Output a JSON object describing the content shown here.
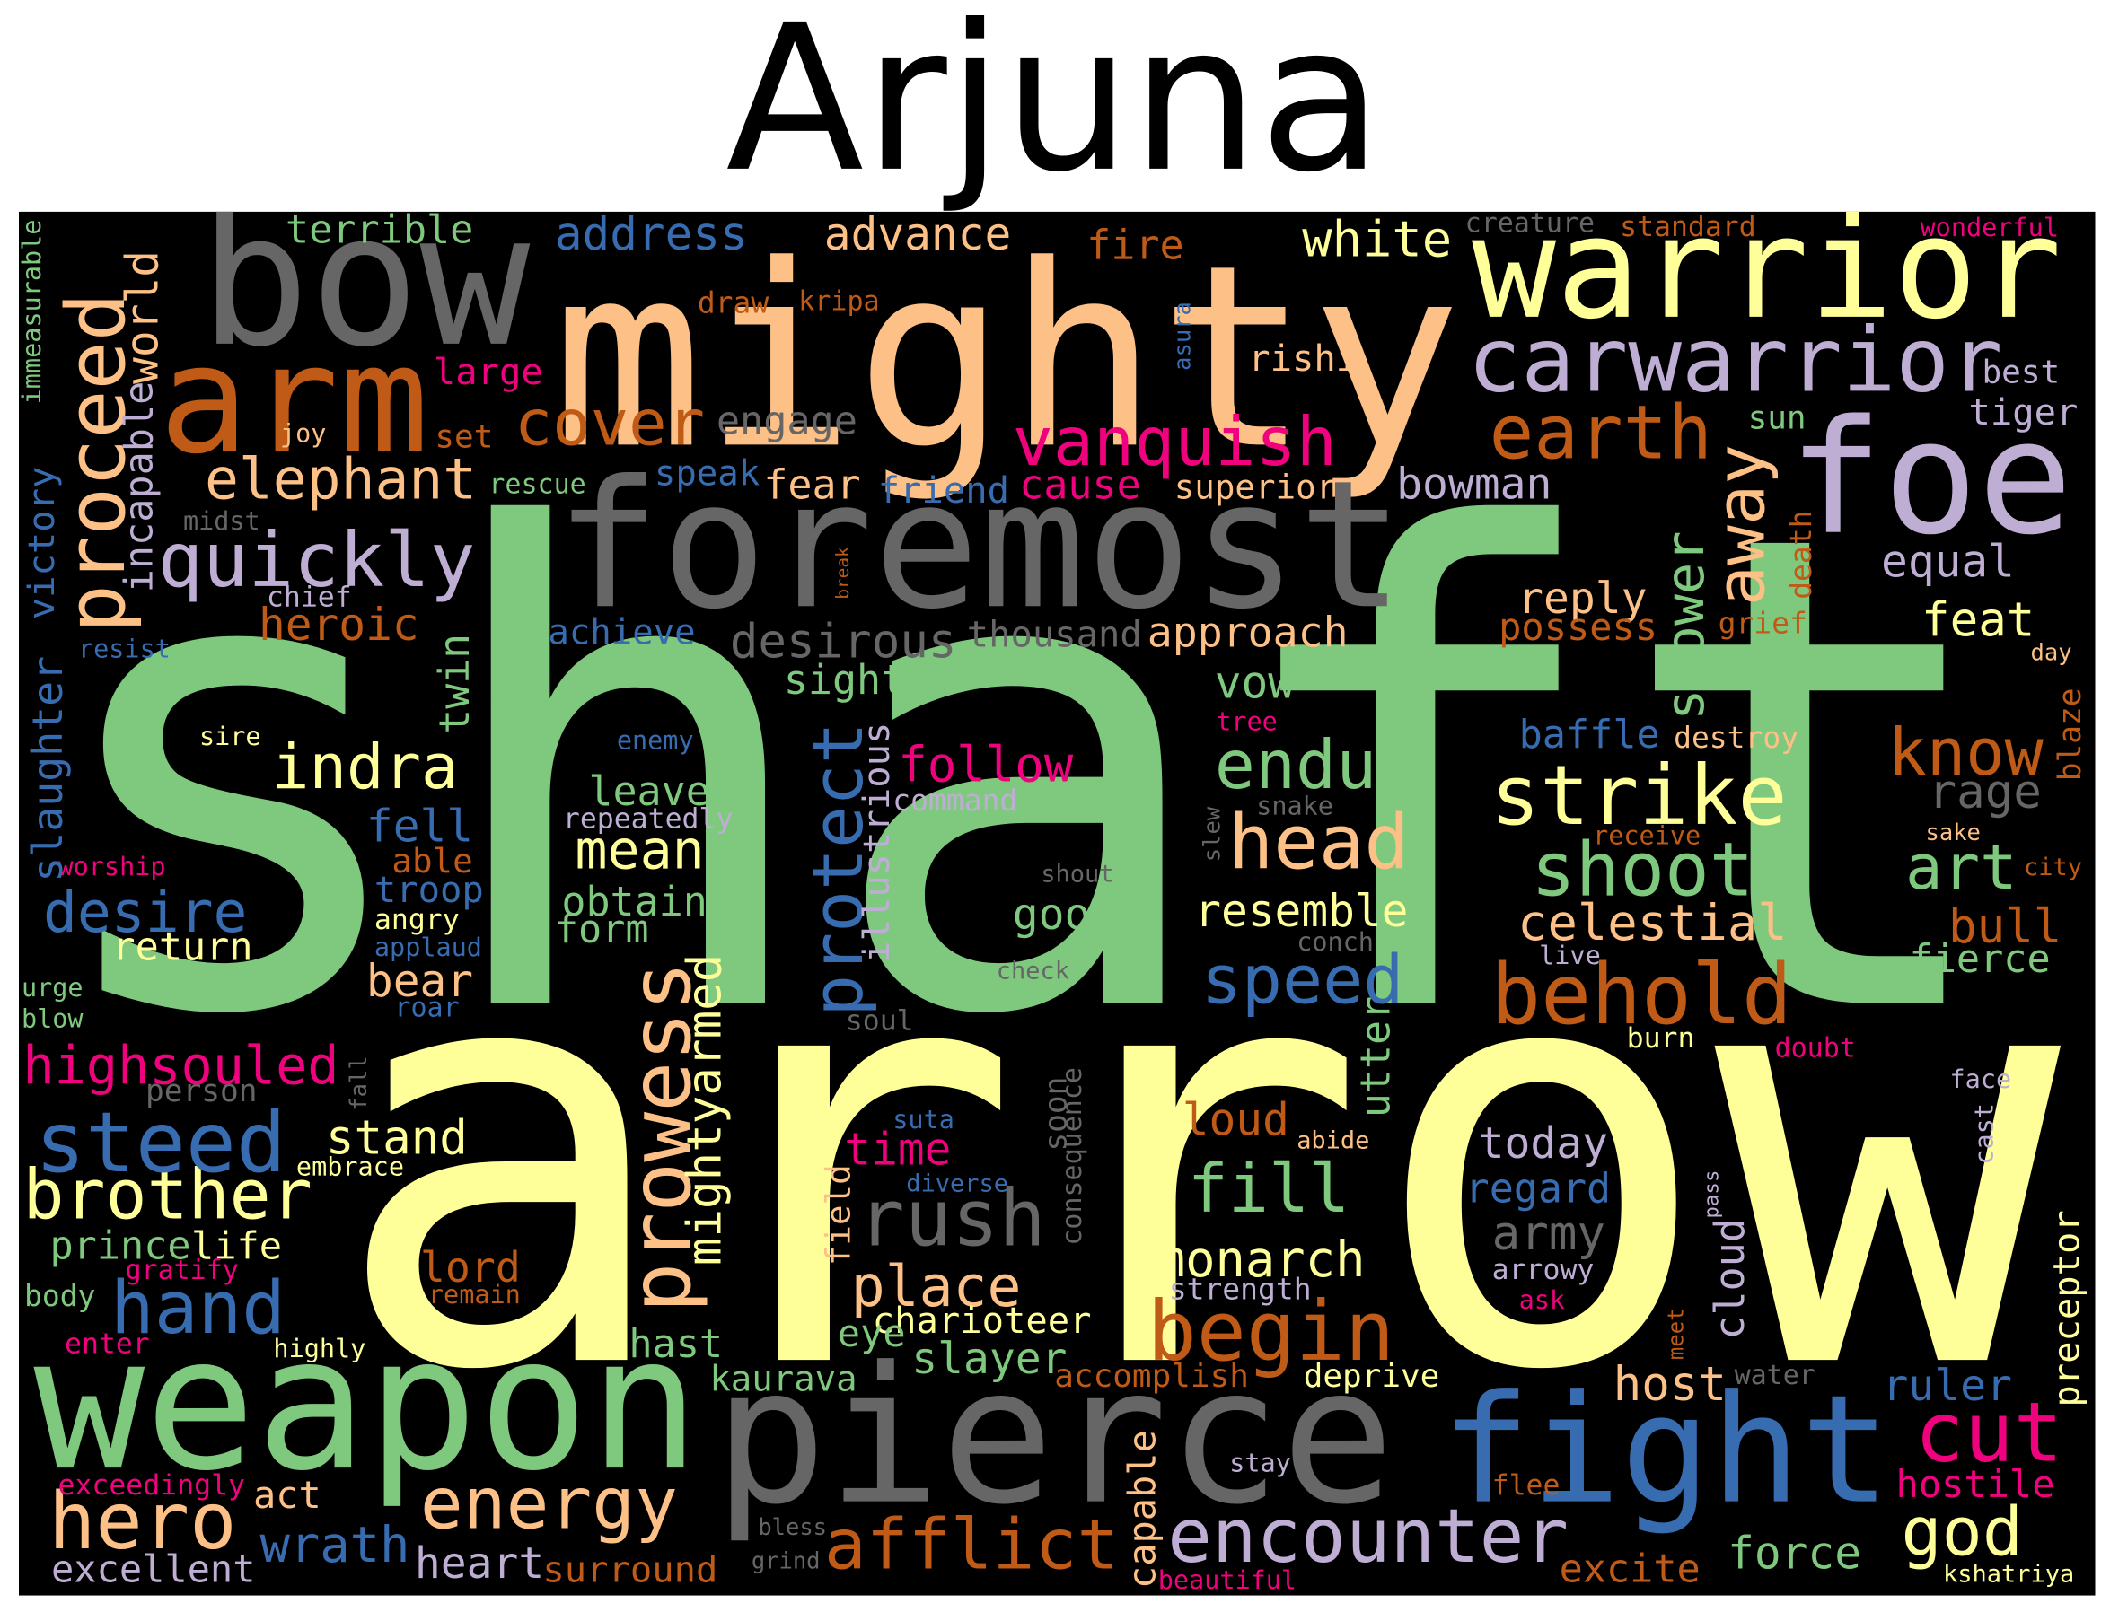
{
  "title": "Arjuna",
  "words": [
    {
      "text": "shaft",
      "color": "#7fc97f"
    },
    {
      "text": "arrow",
      "color": "#ffff99"
    },
    {
      "text": "mighty",
      "color": "#fdc086"
    },
    {
      "text": "foremost",
      "color": "#666666"
    },
    {
      "text": "bow",
      "color": "#666666"
    },
    {
      "text": "arm",
      "color": "#bf5b17"
    },
    {
      "text": "warrior",
      "color": "#ffff99"
    },
    {
      "text": "carwarrior",
      "color": "#beaed4"
    },
    {
      "text": "foe",
      "color": "#beaed4"
    },
    {
      "text": "earth",
      "color": "#bf5b17"
    },
    {
      "text": "weapon",
      "color": "#7fc97f"
    },
    {
      "text": "pierce",
      "color": "#666666"
    },
    {
      "text": "fight",
      "color": "#386cb0"
    },
    {
      "text": "cut",
      "color": "#f0027f"
    },
    {
      "text": "hero",
      "color": "#fdc086"
    },
    {
      "text": "energy",
      "color": "#fdc086"
    },
    {
      "text": "afflict",
      "color": "#bf5b17"
    },
    {
      "text": "encounter",
      "color": "#beaed4"
    },
    {
      "text": "god",
      "color": "#ffff99"
    },
    {
      "text": "force",
      "color": "#7fc97f"
    },
    {
      "text": "excite",
      "color": "#bf5b17"
    },
    {
      "text": "surround",
      "color": "#bf5b17"
    },
    {
      "text": "heart",
      "color": "#beaed4"
    },
    {
      "text": "wrath",
      "color": "#386cb0"
    },
    {
      "text": "excellent",
      "color": "#beaed4"
    },
    {
      "text": "act",
      "color": "#fdc086"
    },
    {
      "text": "exceedingly",
      "color": "#f0027f"
    },
    {
      "text": "capable",
      "color": "#fdc086"
    },
    {
      "text": "bless",
      "color": "#666666"
    },
    {
      "text": "grind",
      "color": "#666666"
    },
    {
      "text": "beautiful",
      "color": "#f0027f"
    },
    {
      "text": "kshatriya",
      "color": "#ffff99"
    },
    {
      "text": "hostile",
      "color": "#f0027f"
    },
    {
      "text": "flee",
      "color": "#bf5b17"
    },
    {
      "text": "stay",
      "color": "#beaed4"
    },
    {
      "text": "ruler",
      "color": "#386cb0"
    },
    {
      "text": "preceptor",
      "color": "#ffff99"
    },
    {
      "text": "host",
      "color": "#fdc086"
    },
    {
      "text": "water",
      "color": "#666666"
    },
    {
      "text": "deprive",
      "color": "#ffff99"
    },
    {
      "text": "accomplish",
      "color": "#bf5b17"
    },
    {
      "text": "begin",
      "color": "#bf5b17"
    },
    {
      "text": "meet",
      "color": "#bf5b17"
    },
    {
      "text": "monarch",
      "color": "#ffff99"
    },
    {
      "text": "strength",
      "color": "#beaed4"
    },
    {
      "text": "arrowy",
      "color": "#beaed4"
    },
    {
      "text": "ask",
      "color": "#f0027f"
    },
    {
      "text": "army",
      "color": "#666666"
    },
    {
      "text": "regard",
      "color": "#386cb0"
    },
    {
      "text": "today",
      "color": "#beaed4"
    },
    {
      "text": "cloud",
      "color": "#beaed4"
    },
    {
      "text": "pass",
      "color": "#beaed4"
    },
    {
      "text": "fill",
      "color": "#7fc97f"
    },
    {
      "text": "loud",
      "color": "#bf5b17"
    },
    {
      "text": "abide",
      "color": "#fdc086"
    },
    {
      "text": "utter",
      "color": "#7fc97f"
    },
    {
      "text": "burn",
      "color": "#ffff99"
    },
    {
      "text": "doubt",
      "color": "#f0027f"
    },
    {
      "text": "face",
      "color": "#beaed4"
    },
    {
      "text": "cast",
      "color": "#beaed4"
    },
    {
      "text": "live",
      "color": "#beaed4"
    },
    {
      "text": "conch",
      "color": "#666666"
    },
    {
      "text": "speed",
      "color": "#386cb0"
    },
    {
      "text": "behold",
      "color": "#bf5b17"
    },
    {
      "text": "fierce",
      "color": "#7fc97f"
    },
    {
      "text": "bull",
      "color": "#bf5b17"
    },
    {
      "text": "art",
      "color": "#7fc97f"
    },
    {
      "text": "city",
      "color": "#bf5b17"
    },
    {
      "text": "sake",
      "color": "#fdc086"
    },
    {
      "text": "rage",
      "color": "#666666"
    },
    {
      "text": "know",
      "color": "#bf5b17"
    },
    {
      "text": "blaze",
      "color": "#bf5b17"
    },
    {
      "text": "day",
      "color": "#fdc086"
    },
    {
      "text": "feat",
      "color": "#ffff99"
    },
    {
      "text": "equal",
      "color": "#beaed4"
    },
    {
      "text": "tiger",
      "color": "#beaed4"
    },
    {
      "text": "best",
      "color": "#beaed4"
    },
    {
      "text": "death",
      "color": "#bf5b17"
    },
    {
      "text": "grief",
      "color": "#bf5b17"
    },
    {
      "text": "sun",
      "color": "#7fc97f"
    },
    {
      "text": "shower",
      "color": "#7fc97f"
    },
    {
      "text": "away",
      "color": "#fdc086"
    },
    {
      "text": "reply",
      "color": "#fdc086"
    },
    {
      "text": "possess",
      "color": "#bf5b17"
    },
    {
      "text": "strike",
      "color": "#ffff99"
    },
    {
      "text": "shoot",
      "color": "#7fc97f"
    },
    {
      "text": "receive",
      "color": "#bf5b17"
    },
    {
      "text": "celestial",
      "color": "#fdc086"
    },
    {
      "text": "baffle",
      "color": "#386cb0"
    },
    {
      "text": "destroy",
      "color": "#fdc086"
    },
    {
      "text": "endue",
      "color": "#7fc97f"
    },
    {
      "text": "head",
      "color": "#fdc086"
    },
    {
      "text": "resemble",
      "color": "#ffff99"
    },
    {
      "text": "slew",
      "color": "#666666"
    },
    {
      "text": "snake",
      "color": "#666666"
    },
    {
      "text": "tree",
      "color": "#f0027f"
    },
    {
      "text": "vow",
      "color": "#7fc97f"
    },
    {
      "text": "approach",
      "color": "#fdc086"
    },
    {
      "text": "thousand",
      "color": "#666666"
    },
    {
      "text": "desirous",
      "color": "#666666"
    },
    {
      "text": "sight",
      "color": "#7fc97f"
    },
    {
      "text": "protect",
      "color": "#386cb0"
    },
    {
      "text": "illustrious",
      "color": "#beaed4"
    },
    {
      "text": "follow",
      "color": "#f0027f"
    },
    {
      "text": "command",
      "color": "#beaed4"
    },
    {
      "text": "break",
      "color": "#bf5b17"
    },
    {
      "text": "shout",
      "color": "#666666"
    },
    {
      "text": "good",
      "color": "#7fc97f"
    },
    {
      "text": "check",
      "color": "#666666"
    },
    {
      "text": "soul",
      "color": "#666666"
    },
    {
      "text": "soon",
      "color": "#666666"
    },
    {
      "text": "consequence",
      "color": "#666666"
    },
    {
      "text": "suta",
      "color": "#386cb0"
    },
    {
      "text": "time",
      "color": "#f0027f"
    },
    {
      "text": "diverse",
      "color": "#386cb0"
    },
    {
      "text": "rush",
      "color": "#666666"
    },
    {
      "text": "field",
      "color": "#fdc086"
    },
    {
      "text": "place",
      "color": "#fdc086"
    },
    {
      "text": "charioteer",
      "color": "#ffff99"
    },
    {
      "text": "eye",
      "color": "#7fc97f"
    },
    {
      "text": "slayer",
      "color": "#7fc97f"
    },
    {
      "text": "hast",
      "color": "#7fc97f"
    },
    {
      "text": "kaurava",
      "color": "#7fc97f"
    },
    {
      "text": "lord",
      "color": "#bf5b17"
    },
    {
      "text": "remain",
      "color": "#bf5b17"
    },
    {
      "text": "prowess",
      "color": "#fdc086"
    },
    {
      "text": "mightyarmed",
      "color": "#ffff99"
    },
    {
      "text": "form",
      "color": "#7fc97f"
    },
    {
      "text": "obtain",
      "color": "#7fc97f"
    },
    {
      "text": "mean",
      "color": "#ffff99"
    },
    {
      "text": "leave",
      "color": "#7fc97f"
    },
    {
      "text": "repeatedly",
      "color": "#beaed4"
    },
    {
      "text": "enemy",
      "color": "#386cb0"
    },
    {
      "text": "indra",
      "color": "#ffff99"
    },
    {
      "text": "twin",
      "color": "#7fc97f"
    },
    {
      "text": "fell",
      "color": "#386cb0"
    },
    {
      "text": "able",
      "color": "#bf5b17"
    },
    {
      "text": "troop",
      "color": "#386cb0"
    },
    {
      "text": "angry",
      "color": "#ffff99"
    },
    {
      "text": "applaud",
      "color": "#386cb0"
    },
    {
      "text": "bear",
      "color": "#fdc086"
    },
    {
      "text": "roar",
      "color": "#386cb0"
    },
    {
      "text": "stand",
      "color": "#ffff99"
    },
    {
      "text": "embrace",
      "color": "#ffff99"
    },
    {
      "text": "fall",
      "color": "#666666"
    },
    {
      "text": "life",
      "color": "#ffff99"
    },
    {
      "text": "prince",
      "color": "#7fc97f"
    },
    {
      "text": "gratify",
      "color": "#f0027f"
    },
    {
      "text": "body",
      "color": "#7fc97f"
    },
    {
      "text": "hand",
      "color": "#386cb0"
    },
    {
      "text": "enter",
      "color": "#f0027f"
    },
    {
      "text": "highly",
      "color": "#ffff99"
    },
    {
      "text": "brother",
      "color": "#ffff99"
    },
    {
      "text": "steed",
      "color": "#386cb0"
    },
    {
      "text": "person",
      "color": "#666666"
    },
    {
      "text": "highsouled",
      "color": "#f0027f"
    },
    {
      "text": "urge",
      "color": "#7fc97f"
    },
    {
      "text": "blow",
      "color": "#7fc97f"
    },
    {
      "text": "return",
      "color": "#ffff99"
    },
    {
      "text": "desire",
      "color": "#386cb0"
    },
    {
      "text": "worship",
      "color": "#f0027f"
    },
    {
      "text": "slaughter",
      "color": "#386cb0"
    },
    {
      "text": "sire",
      "color": "#ffff99"
    },
    {
      "text": "resist",
      "color": "#386cb0"
    },
    {
      "text": "victory",
      "color": "#386cb0"
    },
    {
      "text": "immeasurable",
      "color": "#7fc97f"
    },
    {
      "text": "proceed",
      "color": "#fdc086"
    },
    {
      "text": "world",
      "color": "#fdc086"
    },
    {
      "text": "incapable",
      "color": "#beaed4"
    },
    {
      "text": "midst",
      "color": "#666666"
    },
    {
      "text": "chief",
      "color": "#beaed4"
    },
    {
      "text": "heroic",
      "color": "#bf5b17"
    },
    {
      "text": "quickly",
      "color": "#beaed4"
    },
    {
      "text": "elephant",
      "color": "#fdc086"
    },
    {
      "text": "joy",
      "color": "#fdc086"
    },
    {
      "text": "set",
      "color": "#bf5b17"
    },
    {
      "text": "rescue",
      "color": "#7fc97f"
    },
    {
      "text": "cover",
      "color": "#bf5b17"
    },
    {
      "text": "engage",
      "color": "#666666"
    },
    {
      "text": "large",
      "color": "#f0027f"
    },
    {
      "text": "speak",
      "color": "#386cb0"
    },
    {
      "text": "fear",
      "color": "#fdc086"
    },
    {
      "text": "friend",
      "color": "#386cb0"
    },
    {
      "text": "cause",
      "color": "#f0027f"
    },
    {
      "text": "vanquish",
      "color": "#f0027f"
    },
    {
      "text": "superior",
      "color": "#fdc086"
    },
    {
      "text": "bowman",
      "color": "#beaed4"
    },
    {
      "text": "achieve",
      "color": "#386cb0"
    },
    {
      "text": "rishi",
      "color": "#fdc086"
    },
    {
      "text": "asura",
      "color": "#386cb0"
    },
    {
      "text": "white",
      "color": "#ffff99"
    },
    {
      "text": "fire",
      "color": "#bf5b17"
    },
    {
      "text": "advance",
      "color": "#fdc086"
    },
    {
      "text": "draw",
      "color": "#bf5b17"
    },
    {
      "text": "kripa",
      "color": "#bf5b17"
    },
    {
      "text": "address",
      "color": "#386cb0"
    },
    {
      "text": "terrible",
      "color": "#7fc97f"
    },
    {
      "text": "creature",
      "color": "#666666"
    },
    {
      "text": "standard",
      "color": "#bf5b17"
    },
    {
      "text": "wonderful",
      "color": "#f0027f"
    }
  ]
}
